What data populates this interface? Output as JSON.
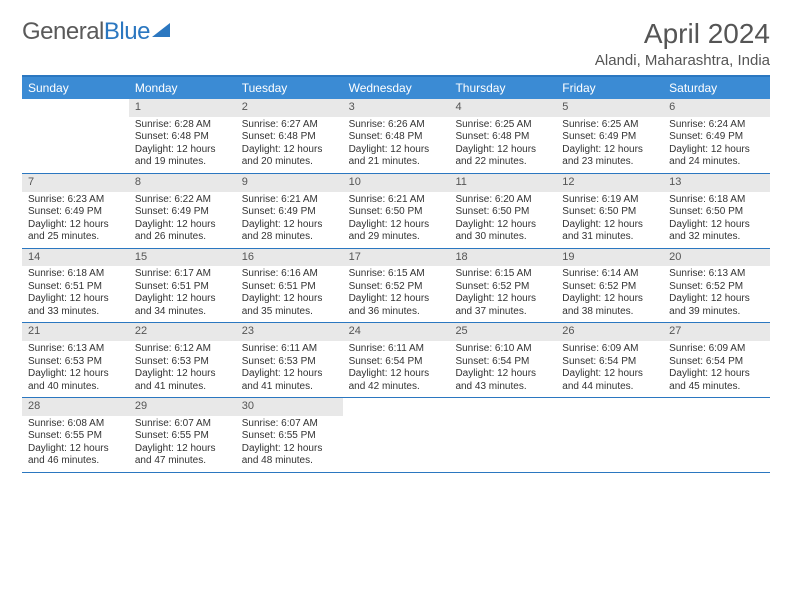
{
  "brand": {
    "part1": "General",
    "part2": "Blue"
  },
  "title": "April 2024",
  "location": "Alandi, Maharashtra, India",
  "colors": {
    "header_bg": "#3b8bd4",
    "header_text": "#ffffff",
    "rule": "#2b77c0",
    "daynum_bg": "#e8e8e8",
    "text": "#333333",
    "title_text": "#555555",
    "page_bg": "#ffffff"
  },
  "typography": {
    "title_fontsize": 28,
    "location_fontsize": 15,
    "dayhdr_fontsize": 12,
    "daynum_fontsize": 11,
    "body_fontsize": 10
  },
  "dayHeaders": [
    "Sunday",
    "Monday",
    "Tuesday",
    "Wednesday",
    "Thursday",
    "Friday",
    "Saturday"
  ],
  "weeks": [
    [
      {
        "num": "",
        "sunrise": "",
        "sunset": "",
        "daylight": ""
      },
      {
        "num": "1",
        "sunrise": "Sunrise: 6:28 AM",
        "sunset": "Sunset: 6:48 PM",
        "daylight": "Daylight: 12 hours and 19 minutes."
      },
      {
        "num": "2",
        "sunrise": "Sunrise: 6:27 AM",
        "sunset": "Sunset: 6:48 PM",
        "daylight": "Daylight: 12 hours and 20 minutes."
      },
      {
        "num": "3",
        "sunrise": "Sunrise: 6:26 AM",
        "sunset": "Sunset: 6:48 PM",
        "daylight": "Daylight: 12 hours and 21 minutes."
      },
      {
        "num": "4",
        "sunrise": "Sunrise: 6:25 AM",
        "sunset": "Sunset: 6:48 PM",
        "daylight": "Daylight: 12 hours and 22 minutes."
      },
      {
        "num": "5",
        "sunrise": "Sunrise: 6:25 AM",
        "sunset": "Sunset: 6:49 PM",
        "daylight": "Daylight: 12 hours and 23 minutes."
      },
      {
        "num": "6",
        "sunrise": "Sunrise: 6:24 AM",
        "sunset": "Sunset: 6:49 PM",
        "daylight": "Daylight: 12 hours and 24 minutes."
      }
    ],
    [
      {
        "num": "7",
        "sunrise": "Sunrise: 6:23 AM",
        "sunset": "Sunset: 6:49 PM",
        "daylight": "Daylight: 12 hours and 25 minutes."
      },
      {
        "num": "8",
        "sunrise": "Sunrise: 6:22 AM",
        "sunset": "Sunset: 6:49 PM",
        "daylight": "Daylight: 12 hours and 26 minutes."
      },
      {
        "num": "9",
        "sunrise": "Sunrise: 6:21 AM",
        "sunset": "Sunset: 6:49 PM",
        "daylight": "Daylight: 12 hours and 28 minutes."
      },
      {
        "num": "10",
        "sunrise": "Sunrise: 6:21 AM",
        "sunset": "Sunset: 6:50 PM",
        "daylight": "Daylight: 12 hours and 29 minutes."
      },
      {
        "num": "11",
        "sunrise": "Sunrise: 6:20 AM",
        "sunset": "Sunset: 6:50 PM",
        "daylight": "Daylight: 12 hours and 30 minutes."
      },
      {
        "num": "12",
        "sunrise": "Sunrise: 6:19 AM",
        "sunset": "Sunset: 6:50 PM",
        "daylight": "Daylight: 12 hours and 31 minutes."
      },
      {
        "num": "13",
        "sunrise": "Sunrise: 6:18 AM",
        "sunset": "Sunset: 6:50 PM",
        "daylight": "Daylight: 12 hours and 32 minutes."
      }
    ],
    [
      {
        "num": "14",
        "sunrise": "Sunrise: 6:18 AM",
        "sunset": "Sunset: 6:51 PM",
        "daylight": "Daylight: 12 hours and 33 minutes."
      },
      {
        "num": "15",
        "sunrise": "Sunrise: 6:17 AM",
        "sunset": "Sunset: 6:51 PM",
        "daylight": "Daylight: 12 hours and 34 minutes."
      },
      {
        "num": "16",
        "sunrise": "Sunrise: 6:16 AM",
        "sunset": "Sunset: 6:51 PM",
        "daylight": "Daylight: 12 hours and 35 minutes."
      },
      {
        "num": "17",
        "sunrise": "Sunrise: 6:15 AM",
        "sunset": "Sunset: 6:52 PM",
        "daylight": "Daylight: 12 hours and 36 minutes."
      },
      {
        "num": "18",
        "sunrise": "Sunrise: 6:15 AM",
        "sunset": "Sunset: 6:52 PM",
        "daylight": "Daylight: 12 hours and 37 minutes."
      },
      {
        "num": "19",
        "sunrise": "Sunrise: 6:14 AM",
        "sunset": "Sunset: 6:52 PM",
        "daylight": "Daylight: 12 hours and 38 minutes."
      },
      {
        "num": "20",
        "sunrise": "Sunrise: 6:13 AM",
        "sunset": "Sunset: 6:52 PM",
        "daylight": "Daylight: 12 hours and 39 minutes."
      }
    ],
    [
      {
        "num": "21",
        "sunrise": "Sunrise: 6:13 AM",
        "sunset": "Sunset: 6:53 PM",
        "daylight": "Daylight: 12 hours and 40 minutes."
      },
      {
        "num": "22",
        "sunrise": "Sunrise: 6:12 AM",
        "sunset": "Sunset: 6:53 PM",
        "daylight": "Daylight: 12 hours and 41 minutes."
      },
      {
        "num": "23",
        "sunrise": "Sunrise: 6:11 AM",
        "sunset": "Sunset: 6:53 PM",
        "daylight": "Daylight: 12 hours and 41 minutes."
      },
      {
        "num": "24",
        "sunrise": "Sunrise: 6:11 AM",
        "sunset": "Sunset: 6:54 PM",
        "daylight": "Daylight: 12 hours and 42 minutes."
      },
      {
        "num": "25",
        "sunrise": "Sunrise: 6:10 AM",
        "sunset": "Sunset: 6:54 PM",
        "daylight": "Daylight: 12 hours and 43 minutes."
      },
      {
        "num": "26",
        "sunrise": "Sunrise: 6:09 AM",
        "sunset": "Sunset: 6:54 PM",
        "daylight": "Daylight: 12 hours and 44 minutes."
      },
      {
        "num": "27",
        "sunrise": "Sunrise: 6:09 AM",
        "sunset": "Sunset: 6:54 PM",
        "daylight": "Daylight: 12 hours and 45 minutes."
      }
    ],
    [
      {
        "num": "28",
        "sunrise": "Sunrise: 6:08 AM",
        "sunset": "Sunset: 6:55 PM",
        "daylight": "Daylight: 12 hours and 46 minutes."
      },
      {
        "num": "29",
        "sunrise": "Sunrise: 6:07 AM",
        "sunset": "Sunset: 6:55 PM",
        "daylight": "Daylight: 12 hours and 47 minutes."
      },
      {
        "num": "30",
        "sunrise": "Sunrise: 6:07 AM",
        "sunset": "Sunset: 6:55 PM",
        "daylight": "Daylight: 12 hours and 48 minutes."
      },
      {
        "num": "",
        "sunrise": "",
        "sunset": "",
        "daylight": ""
      },
      {
        "num": "",
        "sunrise": "",
        "sunset": "",
        "daylight": ""
      },
      {
        "num": "",
        "sunrise": "",
        "sunset": "",
        "daylight": ""
      },
      {
        "num": "",
        "sunrise": "",
        "sunset": "",
        "daylight": ""
      }
    ]
  ]
}
